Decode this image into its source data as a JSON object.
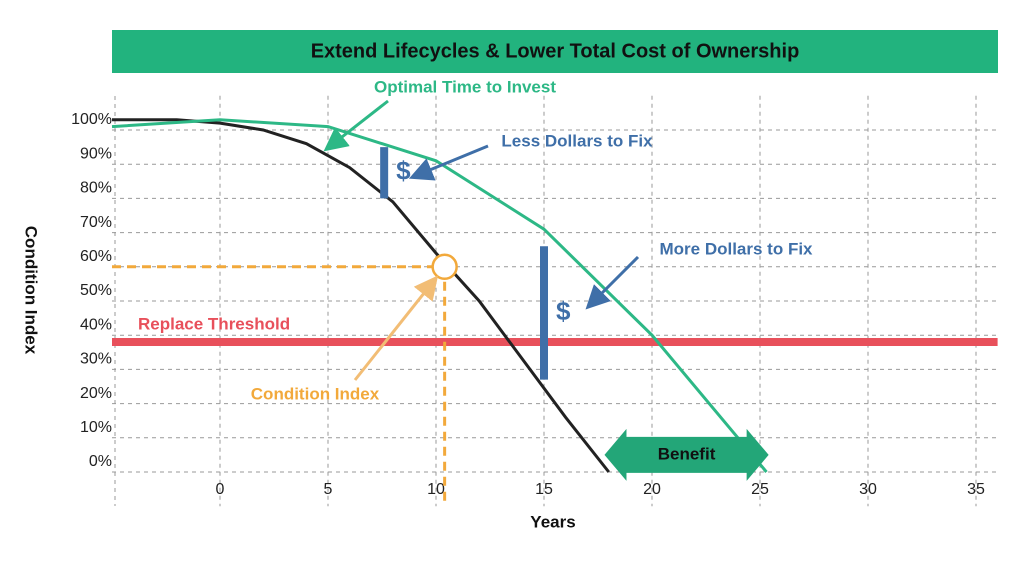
{
  "chart_data": {
    "type": "line",
    "title": "Extend Lifecycles & Lower Total Cost of Ownership",
    "x_label": "Years",
    "y_label": "Condition Index",
    "xlim": [
      -5,
      36
    ],
    "ylim": [
      -10,
      110
    ],
    "xticks": [
      0,
      5,
      10,
      15,
      20,
      25,
      30,
      35
    ],
    "yticks": [
      {
        "value": 0,
        "label": "0%"
      },
      {
        "value": 10,
        "label": "10%"
      },
      {
        "value": 20,
        "label": "20%"
      },
      {
        "value": 30,
        "label": "30%"
      },
      {
        "value": 40,
        "label": "40%"
      },
      {
        "value": 50,
        "label": "50%"
      },
      {
        "value": 60,
        "label": "60%"
      },
      {
        "value": 70,
        "label": "70%"
      },
      {
        "value": 80,
        "label": "80%"
      },
      {
        "value": 90,
        "label": "90%"
      },
      {
        "value": 100,
        "label": "100%"
      }
    ],
    "grid": true,
    "series": [
      {
        "color": "#222222",
        "x": [
          -5,
          -2,
          0,
          2,
          4,
          6,
          8,
          10,
          12,
          14,
          16,
          18
        ],
        "values": [
          103,
          103,
          102,
          100,
          96,
          89,
          79,
          64,
          50,
          33,
          16,
          0
        ]
      },
      {
        "color": "#2db886",
        "x": [
          -5,
          0,
          5,
          10,
          15,
          20,
          25.3
        ],
        "values": [
          101,
          103,
          101,
          91,
          71,
          40,
          0
        ]
      }
    ],
    "threshold": {
      "value": 38,
      "label": "Replace Threshold",
      "color": "#e8505b"
    },
    "point": {
      "x": 10.4,
      "y": 60,
      "label": "Condition Index",
      "color": "#f2a93b"
    },
    "gaps": [
      {
        "x": 7.6,
        "from": 80,
        "to": 95,
        "label": "$",
        "color": "#3f6fa8"
      },
      {
        "x": 15,
        "from": 27,
        "to": 66,
        "label": "$",
        "color": "#3f6fa8"
      }
    ],
    "benefit": {
      "from": 17.8,
      "to": 25.4,
      "y": 5,
      "label": "Benefit",
      "color": "#23a678"
    },
    "annotations": [
      "Optimal Time to Invest",
      "Less Dollars to Fix",
      "More Dollars to Fix"
    ]
  }
}
